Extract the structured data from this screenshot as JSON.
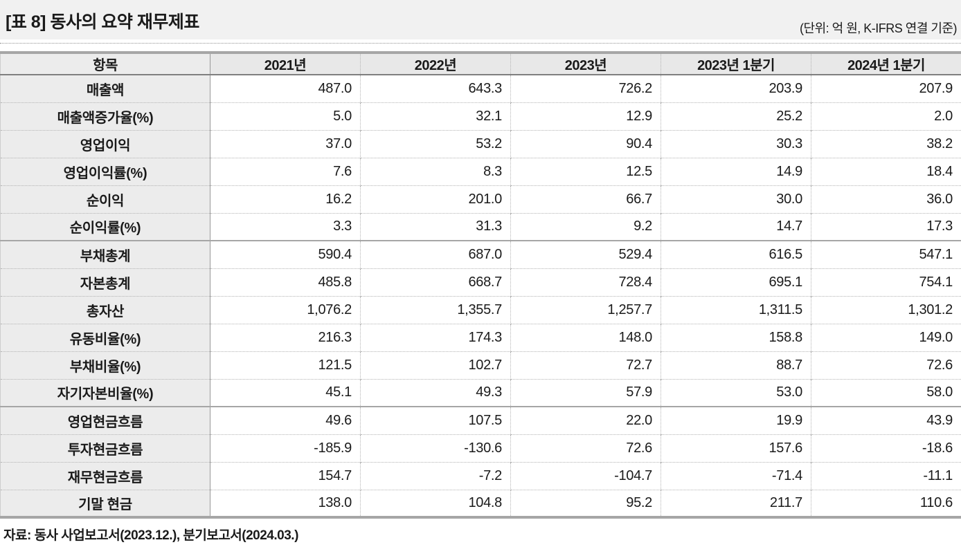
{
  "header": {
    "title": "[표 8] 동사의 요약 재무제표",
    "unit_note": "(단위: 억 원, K-IFRS 연결 기준)"
  },
  "table": {
    "columns": [
      "항목",
      "2021년",
      "2022년",
      "2023년",
      "2023년 1분기",
      "2024년 1분기"
    ],
    "rows": [
      {
        "label": "매출액",
        "values": [
          "487.0",
          "643.3",
          "726.2",
          "203.9",
          "207.9"
        ],
        "section_start": false
      },
      {
        "label": "매출액증가율(%)",
        "values": [
          "5.0",
          "32.1",
          "12.9",
          "25.2",
          "2.0"
        ],
        "section_start": false
      },
      {
        "label": "영업이익",
        "values": [
          "37.0",
          "53.2",
          "90.4",
          "30.3",
          "38.2"
        ],
        "section_start": false
      },
      {
        "label": "영업이익률(%)",
        "values": [
          "7.6",
          "8.3",
          "12.5",
          "14.9",
          "18.4"
        ],
        "section_start": false
      },
      {
        "label": "순이익",
        "values": [
          "16.2",
          "201.0",
          "66.7",
          "30.0",
          "36.0"
        ],
        "section_start": false
      },
      {
        "label": "순이익률(%)",
        "values": [
          "3.3",
          "31.3",
          "9.2",
          "14.7",
          "17.3"
        ],
        "section_start": false
      },
      {
        "label": "부채총계",
        "values": [
          "590.4",
          "687.0",
          "529.4",
          "616.5",
          "547.1"
        ],
        "section_start": true
      },
      {
        "label": "자본총계",
        "values": [
          "485.8",
          "668.7",
          "728.4",
          "695.1",
          "754.1"
        ],
        "section_start": false
      },
      {
        "label": "총자산",
        "values": [
          "1,076.2",
          "1,355.7",
          "1,257.7",
          "1,311.5",
          "1,301.2"
        ],
        "section_start": false
      },
      {
        "label": "유동비율(%)",
        "values": [
          "216.3",
          "174.3",
          "148.0",
          "158.8",
          "149.0"
        ],
        "section_start": false
      },
      {
        "label": "부채비율(%)",
        "values": [
          "121.5",
          "102.7",
          "72.7",
          "88.7",
          "72.6"
        ],
        "section_start": false
      },
      {
        "label": "자기자본비율(%)",
        "values": [
          "45.1",
          "49.3",
          "57.9",
          "53.0",
          "58.0"
        ],
        "section_start": false
      },
      {
        "label": "영업현금흐름",
        "values": [
          "49.6",
          "107.5",
          "22.0",
          "19.9",
          "43.9"
        ],
        "section_start": true
      },
      {
        "label": "투자현금흐름",
        "values": [
          "-185.9",
          "-130.6",
          "72.6",
          "157.6",
          "-18.6"
        ],
        "section_start": false
      },
      {
        "label": "재무현금흐름",
        "values": [
          "154.7",
          "-7.2",
          "-104.7",
          "-71.4",
          "-11.1"
        ],
        "section_start": false
      },
      {
        "label": "기말 현금",
        "values": [
          "138.0",
          "104.8",
          "95.2",
          "211.7",
          "110.6"
        ],
        "section_start": false
      }
    ]
  },
  "footer": {
    "source": "자료: 동사 사업보고서(2023.12.), 분기보고서(2024.03.)"
  },
  "colors": {
    "title_band_bg": "#f1f1f1",
    "header_cell_bg": "#e8e8e8",
    "label_cell_bg": "#ececec",
    "strong_border": "#a6a6a6",
    "dotted_border": "#b3b3b3",
    "text": "#1a1a1a"
  }
}
